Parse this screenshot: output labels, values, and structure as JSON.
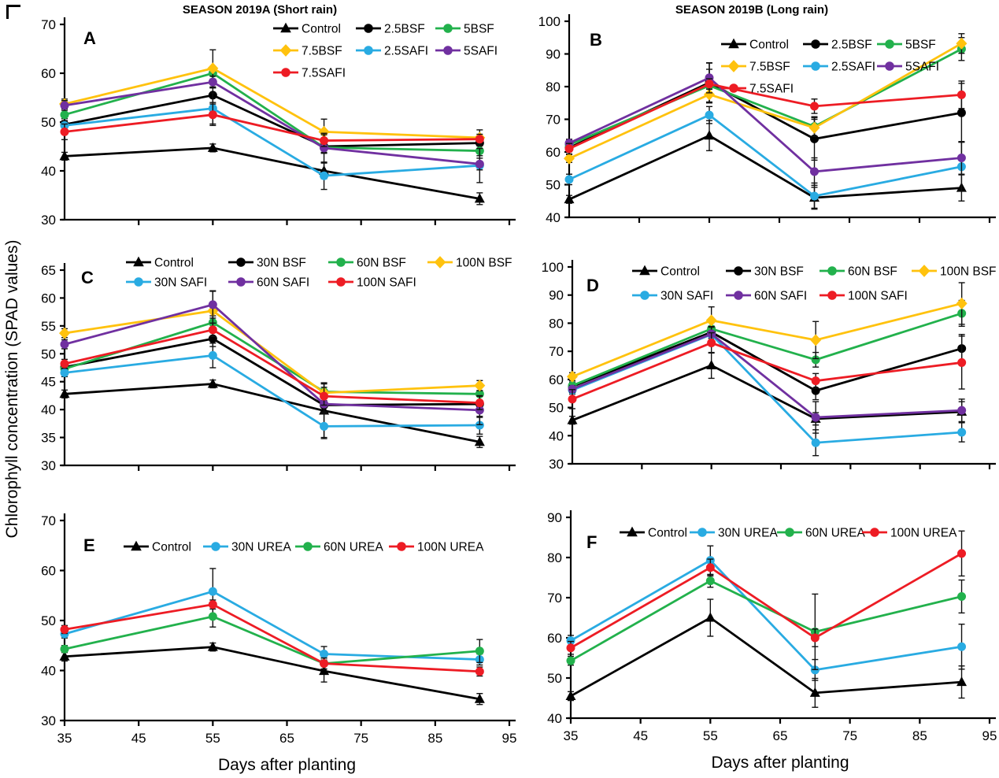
{
  "figure": {
    "y_axis_label": "Chlorophyll concentration (SPAD values)",
    "x_axis_label": "Days after planting",
    "colors": {
      "control_black": "#000000",
      "green": "#22B14C",
      "gold": "#FFC20E",
      "sky_blue": "#29ABE2",
      "purple": "#7030A0",
      "red": "#ED1C24"
    }
  },
  "chart_data": [
    {
      "type": "line",
      "panel": "A",
      "title": "SEASON 2019A (Short rain)",
      "x": [
        35,
        55,
        70,
        91
      ],
      "xticks": [
        45,
        55,
        65,
        75,
        85,
        95
      ],
      "yticks": [
        30,
        40,
        50,
        60,
        70
      ],
      "ylim": [
        30,
        70
      ],
      "xlim": [
        35,
        95
      ],
      "show_x_labels": false,
      "x_axis_label": "",
      "legend_position": "top-right-inside",
      "series": [
        {
          "name": "Control",
          "color": "#000000",
          "marker": "triangle",
          "values": [
            43.0,
            44.7,
            40.0,
            34.3
          ],
          "errors": [
            0.8,
            0.8,
            1.6,
            1.2
          ]
        },
        {
          "name": "2.5BSF",
          "color": "#000000",
          "marker": "circle",
          "values": [
            49.5,
            55.5,
            45.0,
            45.7
          ],
          "errors": [
            1.2,
            1.5,
            1.2,
            1.2
          ]
        },
        {
          "name": "5BSF",
          "color": "#22B14C",
          "marker": "circle",
          "values": [
            51.5,
            60.0,
            44.8,
            44.1
          ],
          "errors": [
            1.2,
            1.2,
            1.2,
            1.0
          ]
        },
        {
          "name": "7.5BSF",
          "color": "#FFC20E",
          "marker": "diamond",
          "values": [
            53.7,
            61.0,
            48.0,
            46.8
          ],
          "errors": [
            1.0,
            3.8,
            2.6,
            1.6
          ]
        },
        {
          "name": "2.5SAFI",
          "color": "#29ABE2",
          "marker": "circle",
          "values": [
            49.3,
            52.8,
            39.0,
            41.1
          ],
          "errors": [
            1.0,
            3.2,
            2.8,
            3.5
          ]
        },
        {
          "name": "5SAFI",
          "color": "#7030A0",
          "marker": "circle",
          "values": [
            53.4,
            58.2,
            44.7,
            41.4
          ],
          "errors": [
            1.0,
            1.2,
            3.0,
            1.2
          ]
        },
        {
          "name": "7.5SAFI",
          "color": "#ED1C24",
          "marker": "circle",
          "values": [
            48.0,
            51.5,
            46.2,
            46.5
          ],
          "errors": [
            1.6,
            2.2,
            1.2,
            1.0
          ]
        }
      ]
    },
    {
      "type": "line",
      "panel": "B",
      "title": "SEASON 2019B (Long rain)",
      "x": [
        35,
        55,
        70,
        91
      ],
      "xticks": [
        45,
        55,
        65,
        75,
        85,
        95
      ],
      "yticks": [
        40,
        50,
        60,
        70,
        80,
        90,
        100
      ],
      "ylim": [
        40,
        100
      ],
      "xlim": [
        35,
        95
      ],
      "show_x_labels": false,
      "x_axis_label": "",
      "legend_position": "top-right-inside",
      "series": [
        {
          "name": "Control",
          "color": "#000000",
          "marker": "triangle",
          "values": [
            45.5,
            65.0,
            46.0,
            49.0
          ],
          "errors": [
            1.2,
            4.6,
            3.2,
            4.0
          ]
        },
        {
          "name": "2.5BSF",
          "color": "#000000",
          "marker": "circle",
          "values": [
            61.3,
            81.2,
            64.0,
            72.0
          ],
          "errors": [
            1.2,
            6.0,
            6.5,
            9.0
          ]
        },
        {
          "name": "5BSF",
          "color": "#22B14C",
          "marker": "circle",
          "values": [
            62.2,
            80.3,
            67.8,
            91.5
          ],
          "errors": [
            1.6,
            5.0,
            3.0,
            3.5
          ]
        },
        {
          "name": "7.5BSF",
          "color": "#FFC20E",
          "marker": "diamond",
          "values": [
            58.0,
            77.6,
            67.4,
            93.2
          ],
          "errors": [
            1.2,
            2.6,
            2.6,
            3.0
          ]
        },
        {
          "name": "2.5SAFI",
          "color": "#29ABE2",
          "marker": "circle",
          "values": [
            51.6,
            71.3,
            46.5,
            55.5
          ],
          "errors": [
            1.6,
            2.6,
            4.0,
            7.5
          ]
        },
        {
          "name": "5SAFI",
          "color": "#7030A0",
          "marker": "circle",
          "values": [
            62.7,
            82.7,
            54.0,
            58.2
          ],
          "errors": [
            1.2,
            4.6,
            4.2,
            5.0
          ]
        },
        {
          "name": "7.5SAFI",
          "color": "#ED1C24",
          "marker": "circle",
          "values": [
            61.0,
            80.8,
            74.0,
            77.5
          ],
          "errors": [
            1.6,
            1.6,
            2.2,
            4.2
          ]
        }
      ]
    },
    {
      "type": "line",
      "panel": "C",
      "title": "",
      "x": [
        35,
        55,
        70,
        91
      ],
      "xticks": [
        45,
        55,
        65,
        75,
        85,
        95
      ],
      "yticks": [
        30,
        35,
        40,
        45,
        50,
        55,
        60,
        65
      ],
      "ylim": [
        30,
        65
      ],
      "xlim": [
        35,
        95
      ],
      "show_x_labels": false,
      "x_axis_label": "",
      "legend_position": "top-inside",
      "series": [
        {
          "name": "Control",
          "color": "#000000",
          "marker": "triangle",
          "values": [
            42.8,
            44.6,
            39.8,
            34.2
          ],
          "errors": [
            0.7,
            0.7,
            4.8,
            1.0
          ]
        },
        {
          "name": "30N BSF",
          "color": "#000000",
          "marker": "circle",
          "values": [
            47.6,
            52.7,
            40.8,
            41.0
          ],
          "errors": [
            0.7,
            1.4,
            1.2,
            2.4
          ]
        },
        {
          "name": "60N BSF",
          "color": "#22B14C",
          "marker": "circle",
          "values": [
            47.3,
            55.6,
            43.2,
            42.8
          ],
          "errors": [
            0.8,
            1.2,
            1.6,
            1.2
          ]
        },
        {
          "name": "100N BSF",
          "color": "#FFC20E",
          "marker": "diamond",
          "values": [
            53.7,
            57.7,
            43.0,
            44.3
          ],
          "errors": [
            0.8,
            3.6,
            1.8,
            0.9
          ]
        },
        {
          "name": "30N SAFI",
          "color": "#29ABE2",
          "marker": "circle",
          "values": [
            46.6,
            49.7,
            37.0,
            37.2
          ],
          "errors": [
            0.7,
            2.2,
            2.2,
            1.6
          ]
        },
        {
          "name": "60N SAFI",
          "color": "#7030A0",
          "marker": "circle",
          "values": [
            51.7,
            58.8,
            41.0,
            39.9
          ],
          "errors": [
            0.8,
            2.4,
            1.6,
            2.6
          ]
        },
        {
          "name": "100N SAFI",
          "color": "#ED1C24",
          "marker": "circle",
          "values": [
            48.2,
            54.3,
            42.4,
            41.2
          ],
          "errors": [
            0.8,
            1.2,
            1.6,
            1.2
          ]
        }
      ]
    },
    {
      "type": "line",
      "panel": "D",
      "title": "",
      "x": [
        35,
        55,
        70,
        91
      ],
      "xticks": [
        45,
        55,
        65,
        75,
        85,
        95
      ],
      "yticks": [
        30,
        40,
        50,
        60,
        70,
        80,
        90,
        100
      ],
      "ylim": [
        30,
        100
      ],
      "xlim": [
        35,
        95
      ],
      "show_x_labels": false,
      "x_axis_label": "",
      "legend_position": "top-inside",
      "series": [
        {
          "name": "Control",
          "color": "#000000",
          "marker": "triangle",
          "values": [
            45.5,
            65.0,
            46.0,
            48.5
          ],
          "errors": [
            1.4,
            4.6,
            2.2,
            3.6
          ]
        },
        {
          "name": "30N BSF",
          "color": "#000000",
          "marker": "circle",
          "values": [
            57.5,
            76.8,
            56.0,
            71.0
          ],
          "errors": [
            1.6,
            2.2,
            3.2,
            5.0
          ]
        },
        {
          "name": "60N BSF",
          "color": "#22B14C",
          "marker": "circle",
          "values": [
            57.8,
            78.0,
            67.0,
            83.5
          ],
          "errors": [
            1.2,
            2.2,
            2.6,
            4.6
          ]
        },
        {
          "name": "100N BSF",
          "color": "#FFC20E",
          "marker": "diamond",
          "values": [
            61.0,
            81.0,
            74.0,
            87.0
          ],
          "errors": [
            1.4,
            4.8,
            6.6,
            7.4
          ]
        },
        {
          "name": "30N SAFI",
          "color": "#29ABE2",
          "marker": "circle",
          "values": [
            56.2,
            76.0,
            37.5,
            41.2
          ],
          "errors": [
            1.4,
            2.6,
            4.6,
            3.4
          ]
        },
        {
          "name": "60N SAFI",
          "color": "#7030A0",
          "marker": "circle",
          "values": [
            56.6,
            76.2,
            46.5,
            49.0
          ],
          "errors": [
            1.2,
            2.6,
            5.6,
            4.0
          ]
        },
        {
          "name": "100N SAFI",
          "color": "#ED1C24",
          "marker": "circle",
          "values": [
            53.0,
            73.0,
            59.5,
            66.0
          ],
          "errors": [
            3.4,
            3.6,
            2.6,
            9.4
          ]
        }
      ]
    },
    {
      "type": "line",
      "panel": "E",
      "title": "",
      "x": [
        35,
        55,
        70,
        91
      ],
      "xticks": [
        35,
        45,
        55,
        65,
        75,
        85,
        95
      ],
      "yticks": [
        30,
        40,
        50,
        60,
        70
      ],
      "ylim": [
        30,
        70
      ],
      "xlim": [
        35,
        95
      ],
      "show_x_labels": true,
      "x_axis_label": "Days after planting",
      "legend_position": "top-inside",
      "series": [
        {
          "name": "Control",
          "color": "#000000",
          "marker": "triangle",
          "values": [
            42.8,
            44.7,
            39.9,
            34.3
          ],
          "errors": [
            0.9,
            0.8,
            2.2,
            1.1
          ]
        },
        {
          "name": "30N UREA",
          "color": "#29ABE2",
          "marker": "circle",
          "values": [
            47.3,
            55.8,
            43.3,
            42.2
          ],
          "errors": [
            0.8,
            4.6,
            1.5,
            1.1
          ]
        },
        {
          "name": "60N UREA",
          "color": "#22B14C",
          "marker": "circle",
          "values": [
            44.3,
            50.8,
            41.4,
            43.9
          ],
          "errors": [
            0.7,
            2.1,
            1.1,
            2.3
          ]
        },
        {
          "name": "100N UREA",
          "color": "#ED1C24",
          "marker": "circle",
          "values": [
            48.2,
            53.2,
            41.4,
            39.8
          ],
          "errors": [
            0.8,
            0.9,
            1.1,
            0.9
          ]
        }
      ]
    },
    {
      "type": "line",
      "panel": "F",
      "title": "",
      "x": [
        35,
        55,
        70,
        91
      ],
      "xticks": [
        35,
        45,
        55,
        65,
        75,
        85,
        95
      ],
      "yticks": [
        40,
        50,
        60,
        70,
        80,
        90
      ],
      "ylim": [
        40,
        90
      ],
      "xlim": [
        35,
        95
      ],
      "show_x_labels": true,
      "x_axis_label": "Days after planting",
      "legend_position": "top-inside",
      "series": [
        {
          "name": "Control",
          "color": "#000000",
          "marker": "triangle",
          "values": [
            45.5,
            65.0,
            46.3,
            49.0
          ],
          "errors": [
            1.1,
            4.6,
            3.6,
            4.0
          ]
        },
        {
          "name": "30N UREA",
          "color": "#29ABE2",
          "marker": "circle",
          "values": [
            59.3,
            79.3,
            52.0,
            57.8
          ],
          "errors": [
            1.3,
            3.6,
            2.6,
            5.6
          ]
        },
        {
          "name": "60N UREA",
          "color": "#22B14C",
          "marker": "circle",
          "values": [
            54.3,
            74.2,
            61.5,
            70.3
          ],
          "errors": [
            1.1,
            1.6,
            9.4,
            4.1
          ]
        },
        {
          "name": "100N UREA",
          "color": "#ED1C24",
          "marker": "circle",
          "values": [
            57.5,
            77.5,
            60.0,
            81.0
          ],
          "errors": [
            1.6,
            2.1,
            2.2,
            5.6
          ]
        }
      ]
    }
  ]
}
